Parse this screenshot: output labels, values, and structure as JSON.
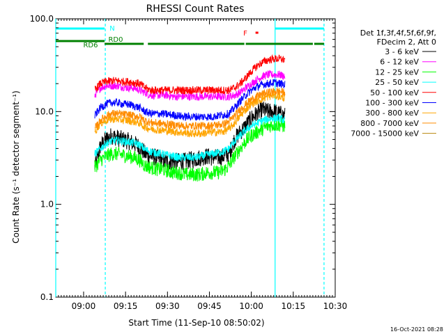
{
  "chart_data": {
    "type": "line",
    "title": "RHESSI Count Rates",
    "xlabel": "Start Time (11-Sep-10 08:50:02)",
    "ylabel": "Count Rate (s⁻¹ detector segment⁻¹)",
    "y_scale": "log",
    "ylim": [
      0.1,
      100.0
    ],
    "x_range": [
      "08:50:02",
      "10:30:00"
    ],
    "x_tick_labels": [
      "09:00",
      "09:15",
      "09:30",
      "09:45",
      "10:00",
      "10:15",
      "10:30"
    ],
    "y_tick_labels": [
      "0.1",
      "1.0",
      "10.0",
      "100.0"
    ],
    "legend": {
      "position": "right",
      "header": [
        "Det 1f,3f,4f,5f,6f,9f,",
        "FDecim 2, Att 0"
      ]
    },
    "timestamp": "16-Oct-2021 08:28",
    "state_bars": [
      {
        "label": "N",
        "color": "#00ffff",
        "segments": [
          [
            "08:50:02",
            "09:07:30"
          ],
          [
            "10:08:30",
            "10:26:00"
          ]
        ]
      },
      {
        "label": "F",
        "color": "#ff0000",
        "segments": [
          [
            "10:01:30",
            "10:02:30"
          ]
        ]
      },
      {
        "label": "RD0",
        "color": "#008000",
        "segments": [
          [
            "09:07:30",
            "09:21:30"
          ],
          [
            "09:23:00",
            "09:57:30"
          ],
          [
            "09:58:00",
            "10:22:00"
          ],
          [
            "10:22:30",
            "10:26:00"
          ]
        ]
      },
      {
        "label": "RD6",
        "color": "#008000",
        "segments": [
          [
            "08:50:02",
            "09:07:30"
          ]
        ]
      }
    ],
    "vertical_markers": [
      {
        "time": "09:07:45",
        "color": "#00ffff",
        "style": "dashed"
      },
      {
        "time": "10:08:30",
        "color": "#00ffff",
        "style": "solid"
      },
      {
        "time": "10:26:00",
        "color": "#00ffff",
        "style": "dashed"
      },
      {
        "time": "08:50:02",
        "color": "#00ffff",
        "style": "solid"
      }
    ],
    "x_times": [
      "09:04",
      "09:06",
      "09:08",
      "09:10",
      "09:12",
      "09:14",
      "09:16",
      "09:18",
      "09:20",
      "09:22",
      "09:24",
      "09:26",
      "09:28",
      "09:30",
      "09:32",
      "09:34",
      "09:36",
      "09:38",
      "09:40",
      "09:42",
      "09:44",
      "09:46",
      "09:48",
      "09:50",
      "09:52",
      "09:54",
      "09:56",
      "09:58",
      "10:00",
      "10:02",
      "10:04",
      "10:06",
      "10:08",
      "10:10",
      "10:12"
    ],
    "series": [
      {
        "name": "3 - 6 keV",
        "color": "#000000",
        "values": [
          2.5,
          4.2,
          5.0,
          5.5,
          5.2,
          5.0,
          4.8,
          4.5,
          4.2,
          3.5,
          3.3,
          3.2,
          3.0,
          2.9,
          2.9,
          2.9,
          2.9,
          3.0,
          3.1,
          3.2,
          3.3,
          3.2,
          3.2,
          3.3,
          3.5,
          5.0,
          6.0,
          7.0,
          8.5,
          9.5,
          10.5,
          10.0,
          10.0,
          9.5,
          9.0
        ]
      },
      {
        "name": "6 - 12 keV",
        "color": "#ff00ff",
        "values": [
          15,
          18,
          19,
          19,
          19,
          18.5,
          18,
          18,
          17,
          16,
          15,
          15,
          15,
          15,
          14.5,
          14.5,
          14.5,
          14.5,
          14.5,
          14.5,
          14.5,
          14.5,
          14.5,
          14.5,
          14.5,
          15,
          16,
          18,
          20,
          22,
          24,
          25,
          25,
          25,
          24
        ]
      },
      {
        "name": "12 - 25 keV",
        "color": "#00ff00",
        "values": [
          2.5,
          3.0,
          3.3,
          3.5,
          3.5,
          3.4,
          3.3,
          3.2,
          3.0,
          2.6,
          2.5,
          2.4,
          2.4,
          2.3,
          2.2,
          2.2,
          2.1,
          2.1,
          2.1,
          2.1,
          2.2,
          2.2,
          2.2,
          2.3,
          2.6,
          3.3,
          4.0,
          4.8,
          5.5,
          6.0,
          6.5,
          7.0,
          7.2,
          7.2,
          7.0
        ]
      },
      {
        "name": "25 - 50 keV",
        "color": "#00ffff",
        "values": [
          3.5,
          4.0,
          4.5,
          4.8,
          4.9,
          4.8,
          4.7,
          4.6,
          4.4,
          3.9,
          3.7,
          3.6,
          3.5,
          3.4,
          3.3,
          3.2,
          3.2,
          3.2,
          3.2,
          3.3,
          3.4,
          3.5,
          3.6,
          3.7,
          4.0,
          4.8,
          5.5,
          6.3,
          7.0,
          7.5,
          8.0,
          8.3,
          8.5,
          8.5,
          8.0
        ]
      },
      {
        "name": "50 - 100 keV",
        "color": "#ff0000",
        "values": [
          17,
          20,
          21,
          21.5,
          21.5,
          21,
          21,
          20.5,
          20,
          18,
          17,
          17,
          17,
          17,
          17,
          17,
          17,
          17,
          17,
          17,
          17,
          17,
          17,
          17,
          17,
          18,
          20,
          23,
          27,
          31,
          34,
          36,
          37,
          37,
          36
        ]
      },
      {
        "name": "100 - 300 keV",
        "color": "#0000ff",
        "values": [
          9,
          11,
          12,
          12.5,
          12.5,
          12,
          12,
          11.5,
          11,
          10,
          9.5,
          9.5,
          9.5,
          9.3,
          9.2,
          9.0,
          8.8,
          8.8,
          8.8,
          8.8,
          8.8,
          8.8,
          9.0,
          9.2,
          9.5,
          11,
          13,
          15,
          17,
          18.5,
          19.5,
          20,
          20.5,
          20,
          19.5
        ]
      },
      {
        "name": "300 - 800 keV",
        "color": "#ffa500",
        "values": [
          6,
          7.5,
          8,
          8.3,
          8.3,
          8.1,
          8,
          7.8,
          7.5,
          6.8,
          6.5,
          6.4,
          6.3,
          6.2,
          6.1,
          6.0,
          5.9,
          5.8,
          5.8,
          5.8,
          5.9,
          6.0,
          6.0,
          6.1,
          6.5,
          7.5,
          9.0,
          10.5,
          12,
          13,
          13.8,
          14.5,
          15,
          14.5,
          14
        ]
      },
      {
        "name": "800 - 7000 keV",
        "color": "#ff8c00",
        "values": [
          6.5,
          8,
          9,
          9.5,
          9.5,
          9.3,
          9.2,
          9,
          8.8,
          8,
          7.6,
          7.5,
          7.4,
          7.3,
          7.2,
          7.1,
          7.0,
          7.0,
          7.0,
          7.0,
          7.0,
          7.1,
          7.2,
          7.3,
          7.8,
          9.0,
          10.5,
          12,
          13.5,
          14.5,
          15.5,
          16,
          16.5,
          16.5,
          16
        ]
      },
      {
        "name": "7000 - 15000 keV",
        "color": "#b8860b",
        "values": []
      }
    ]
  }
}
